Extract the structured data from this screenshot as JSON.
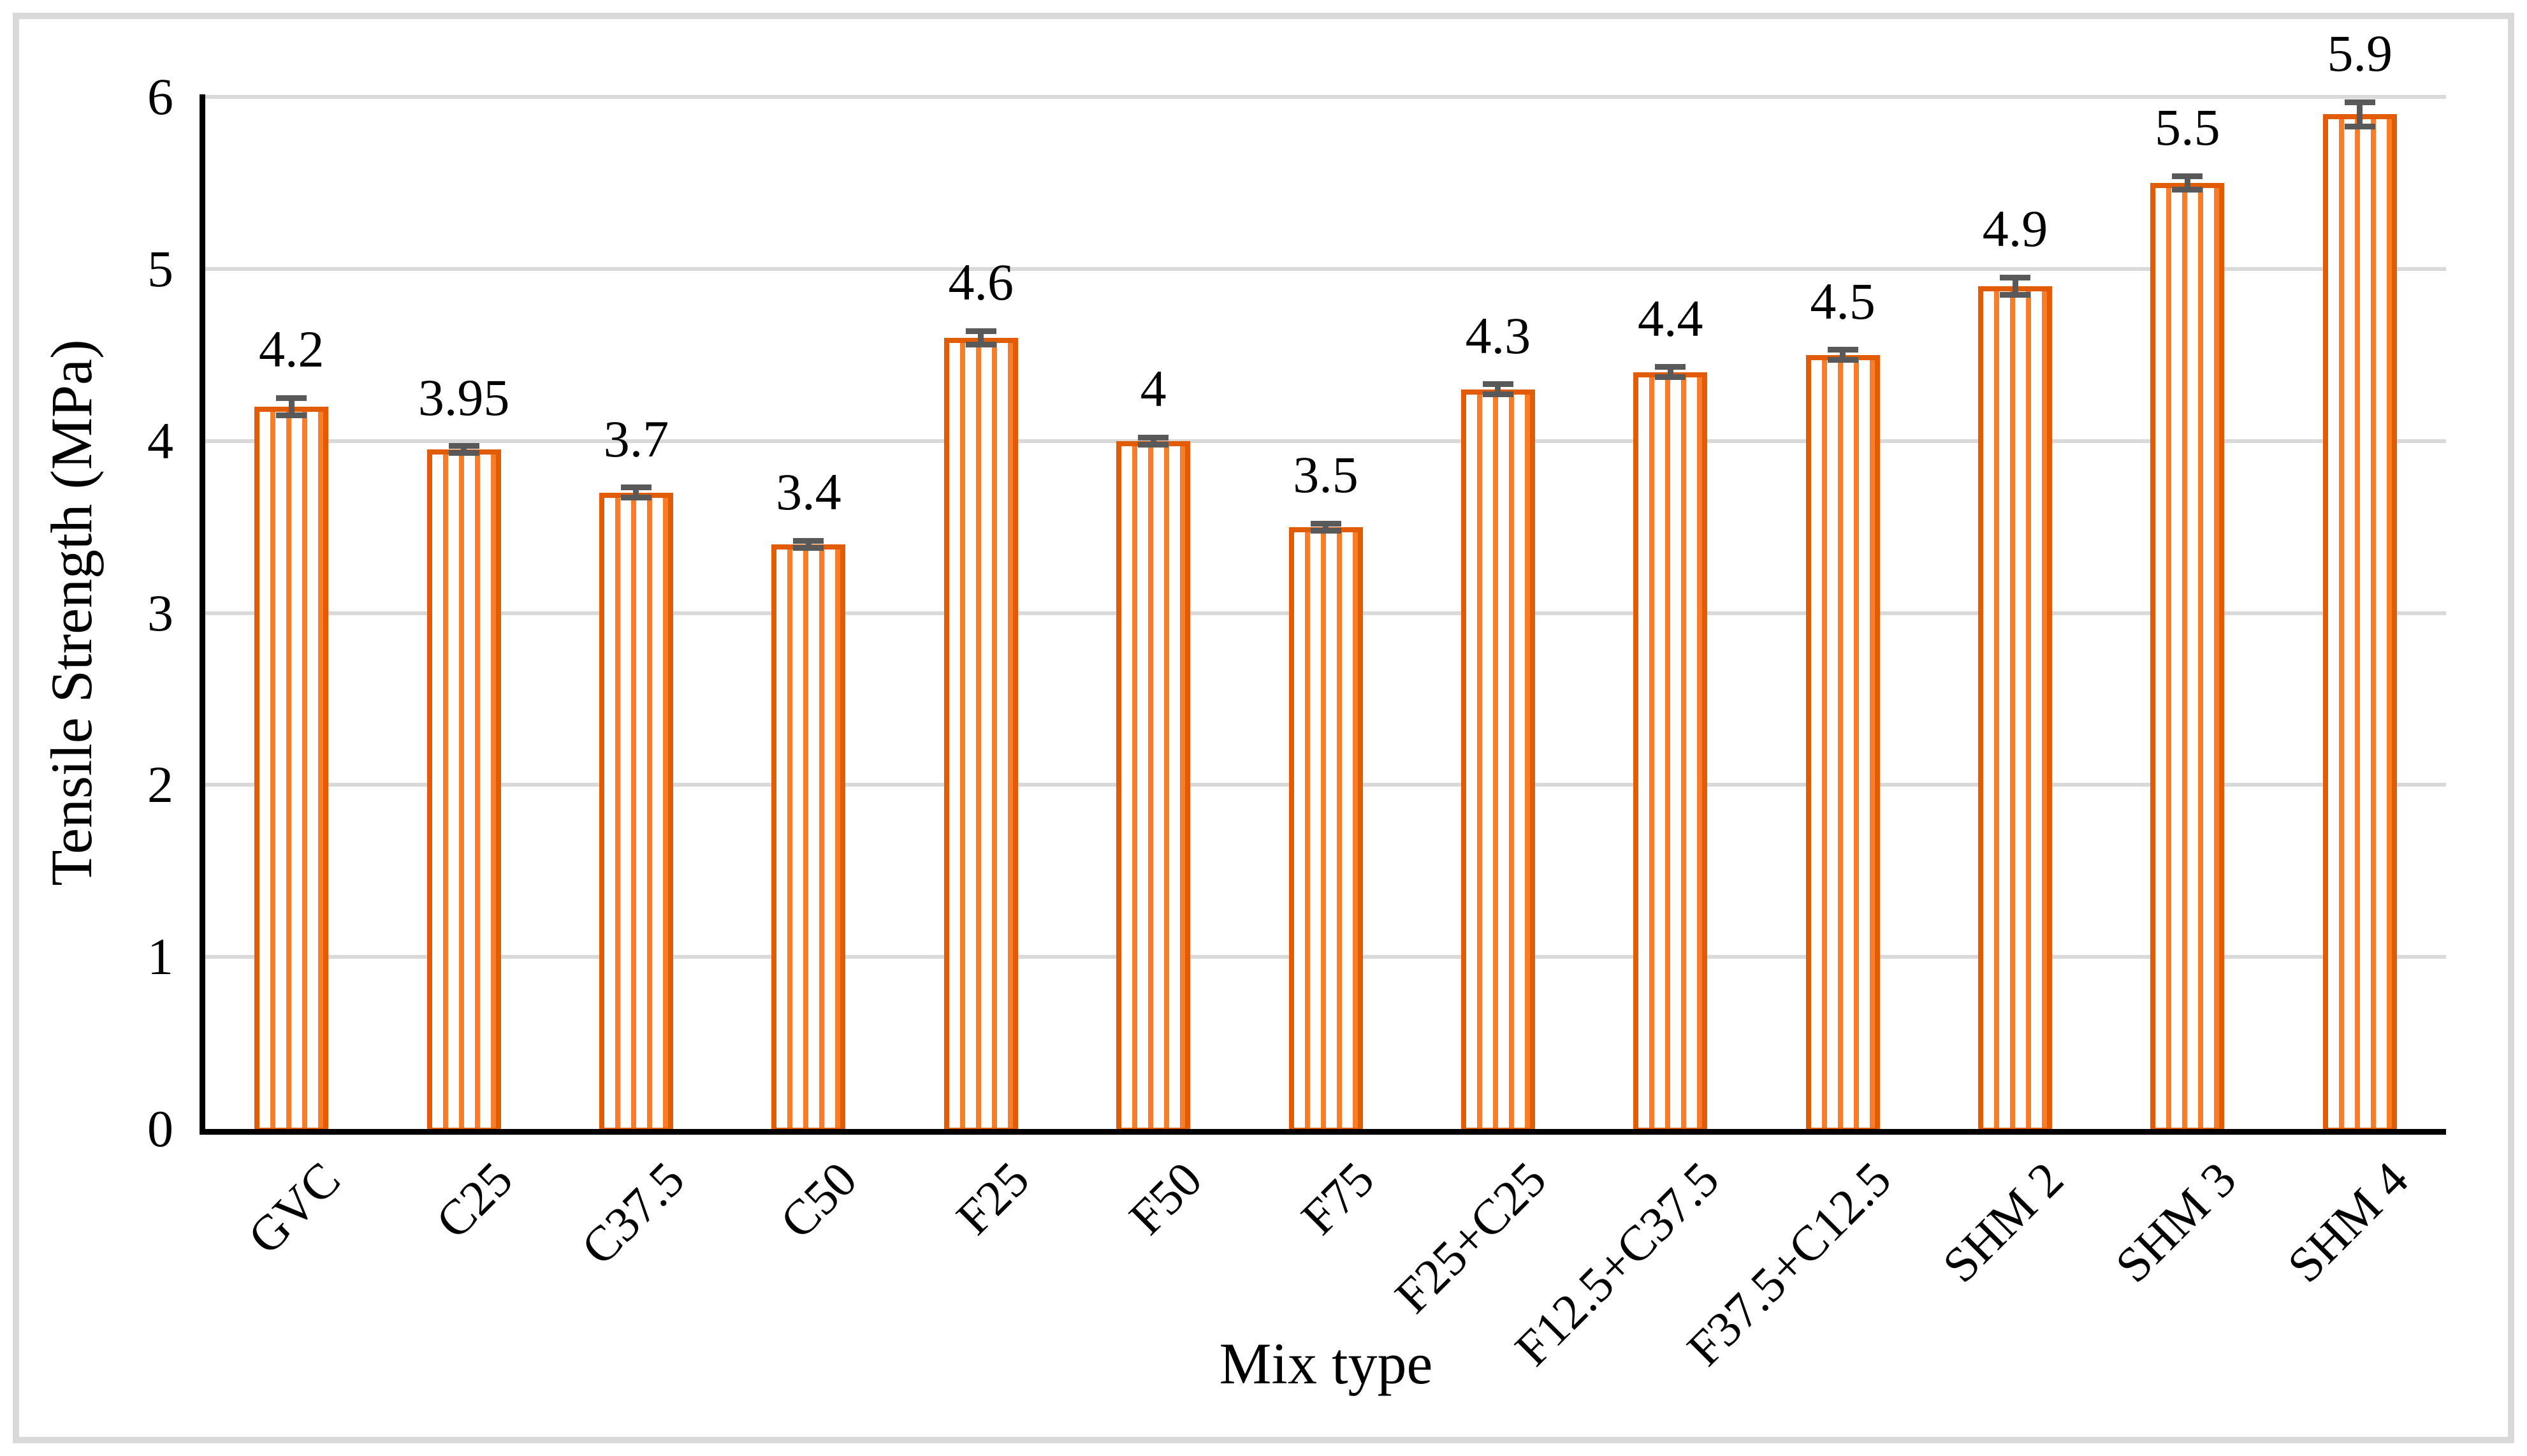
{
  "chart_data": {
    "type": "bar",
    "title": "",
    "xlabel": "Mix type",
    "ylabel": "Tensile Strength (MPa)",
    "categories": [
      "GVC",
      "C25",
      "C37.5",
      "C50",
      "F25",
      "F50",
      "F75",
      "F25+C25",
      "F12.5+C37.5",
      "F37.5+C12.5",
      "SHM 2",
      "SHM 3",
      "SHM 4"
    ],
    "values": [
      4.2,
      3.95,
      3.7,
      3.4,
      4.6,
      4,
      3.5,
      4.3,
      4.4,
      4.5,
      4.9,
      5.5,
      5.9
    ],
    "data_labels": [
      "4.2",
      "3.95",
      "3.7",
      "3.4",
      "4.6",
      "4",
      "3.5",
      "4.3",
      "4.4",
      "4.5",
      "4.9",
      "5.5",
      "5.9"
    ],
    "error_bars": [
      0.05,
      0.02,
      0.03,
      0.02,
      0.04,
      0.02,
      0.02,
      0.03,
      0.03,
      0.03,
      0.05,
      0.04,
      0.07
    ],
    "ylim": [
      0,
      6
    ],
    "yticks": [
      0,
      1,
      2,
      3,
      4,
      5,
      6
    ],
    "grid": true,
    "legend_position": "none",
    "bar_fill_style": "vertical-stripes",
    "colors": {
      "bar_border": "#E25B05",
      "bar_stripe": "#F97C28",
      "bar_background": "#FFFFFF",
      "error_bar": "#595959",
      "gridline": "#D9D9D9",
      "axis": "#000000",
      "frame_border": "#D9D9D9",
      "background": "#FFFFFF",
      "text": "#000000"
    }
  }
}
